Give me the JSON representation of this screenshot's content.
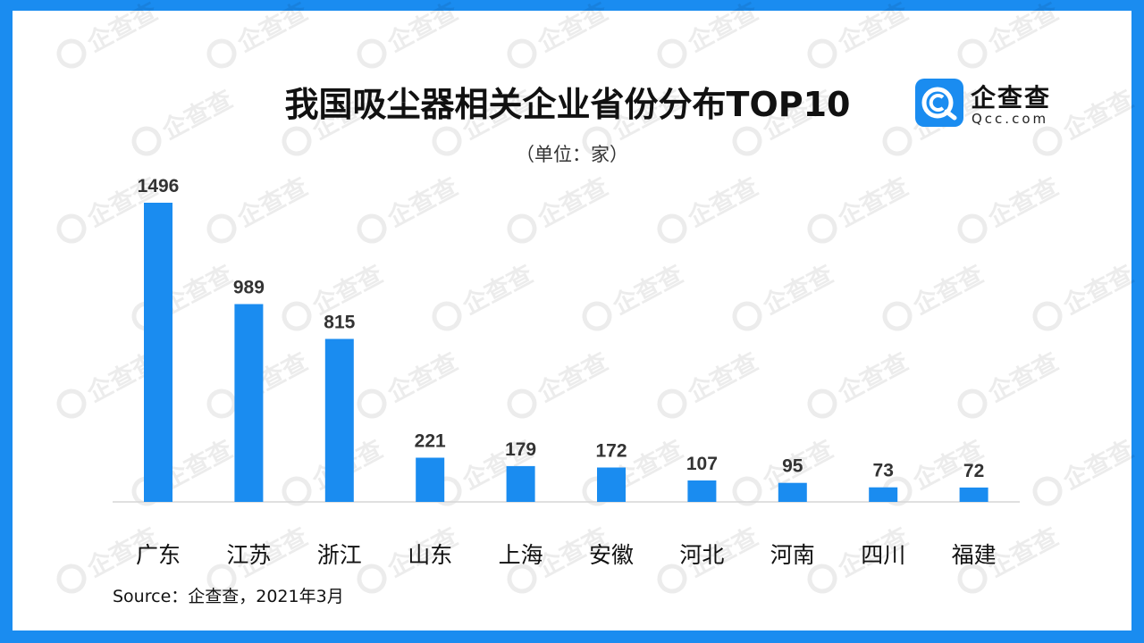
{
  "header": {
    "title": "我国吸尘器相关企业省份分布TOP10",
    "unit": "（单位：家）"
  },
  "logo": {
    "name": "企查查",
    "domain": "Qcc.com",
    "icon": "qcc-logo-icon",
    "accent_color": "#1a8cf0"
  },
  "watermark": {
    "text": "企查查",
    "icon": "qcc-watermark-icon"
  },
  "footer": {
    "source": "Source：企查查，2021年3月"
  },
  "chart_data": {
    "type": "bar",
    "title": "我国吸尘器相关企业省份分布TOP10",
    "subtitle": "（单位：家）",
    "categories": [
      "广东",
      "江苏",
      "浙江",
      "山东",
      "上海",
      "安徽",
      "河北",
      "河南",
      "四川",
      "福建"
    ],
    "values": [
      1496,
      989,
      815,
      221,
      179,
      172,
      107,
      95,
      73,
      72
    ],
    "xlabel": "",
    "ylabel": "",
    "ylim": [
      0,
      1496
    ],
    "grid": false,
    "legend": "none",
    "bar_color": "#1a8cf0",
    "data_labels": true
  }
}
